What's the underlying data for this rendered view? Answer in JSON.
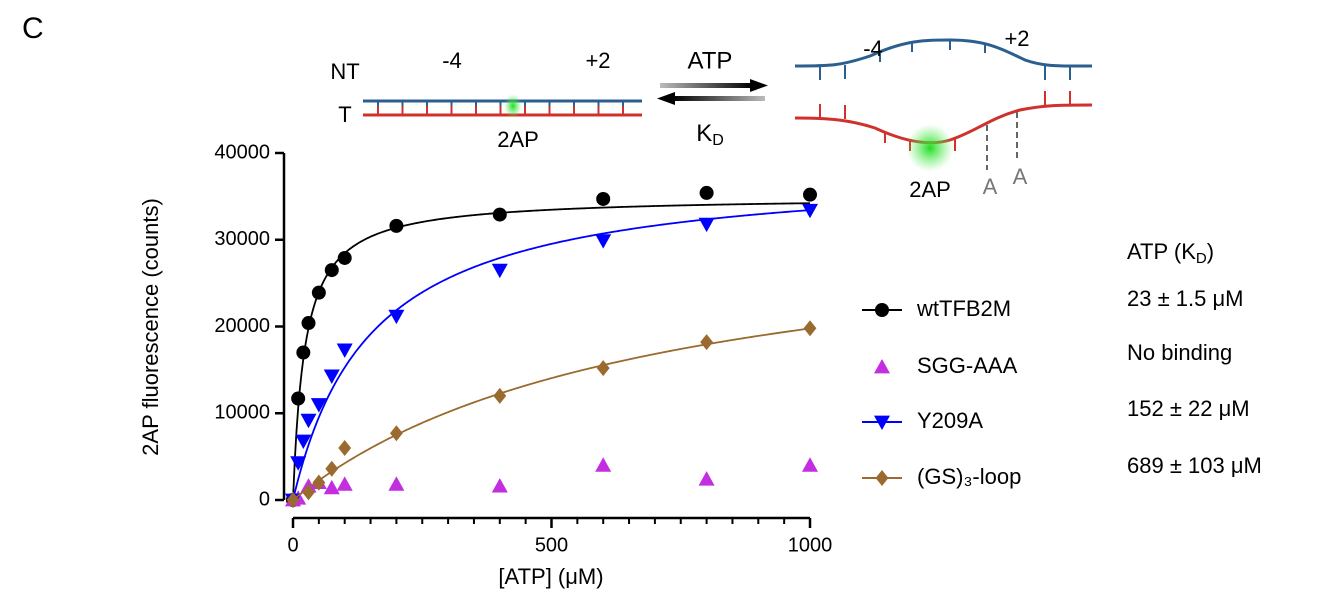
{
  "panel_label": "C",
  "diagram": {
    "nt": "NT",
    "t": "T",
    "left_minus4": "-4",
    "left_plus2": "+2",
    "left_2ap": "2AP",
    "atp": "ATP",
    "kd": [
      "K",
      "D"
    ],
    "right_minus4": "-4",
    "right_plus2": "+2",
    "right_2ap": "2AP",
    "a1": "A",
    "a2": "A"
  },
  "chart_data": {
    "type": "scatter",
    "xlabel": "[ATP] (μM)",
    "ylabel": "2AP fluorescence (counts)",
    "x": [
      0,
      10,
      20,
      30,
      50,
      75,
      100,
      200,
      400,
      600,
      800,
      1000
    ],
    "xlim": [
      0,
      1000
    ],
    "xticks": [
      0,
      500,
      1000
    ],
    "xminorticks": [
      50,
      100,
      150,
      200,
      250,
      300,
      350,
      400,
      450,
      550,
      600,
      650,
      700,
      750,
      800,
      850,
      900,
      950
    ],
    "ylim": [
      0,
      40000
    ],
    "yticks": [
      0,
      10000,
      20000,
      30000,
      40000
    ],
    "kd_header": [
      "ATP (K",
      "D",
      ")"
    ],
    "series": [
      {
        "name": "wtTFB2M",
        "color": "#000000",
        "marker": "circle",
        "kd_label": "23 ± 1.5 μM",
        "fit": {
          "bmax": 35000,
          "kd": 23
        },
        "values": [
          0,
          11700,
          17000,
          20400,
          23900,
          26500,
          27900,
          31600,
          32900,
          34700,
          35400,
          35200
        ]
      },
      {
        "name": "SGG-AAA",
        "color": "#c22ee0",
        "marker": "triangle-up",
        "kd_label": "No binding",
        "values": [
          0,
          200,
          null,
          1600,
          2000,
          1400,
          1800,
          1800,
          1600,
          4000,
          2400,
          4000
        ]
      },
      {
        "name": "Y209A",
        "color": "#0000ff",
        "marker": "triangle-down",
        "kd_label": "152 ± 22 μM",
        "fit": {
          "bmax": 38500,
          "kd": 152
        },
        "values": [
          0,
          4300,
          6800,
          9200,
          11000,
          14300,
          17300,
          21200,
          26500,
          29900,
          31800,
          33400
        ]
      },
      {
        "name": "(GS)₃-loop",
        "color": "#9a6a2e",
        "marker": "diamond",
        "kd_label": "689 ± 103 μM",
        "fit": {
          "bmax": 33400,
          "kd": 689
        },
        "values": [
          0,
          null,
          null,
          900,
          2000,
          3600,
          6000,
          7700,
          12000,
          15200,
          18200,
          19800
        ]
      }
    ]
  }
}
